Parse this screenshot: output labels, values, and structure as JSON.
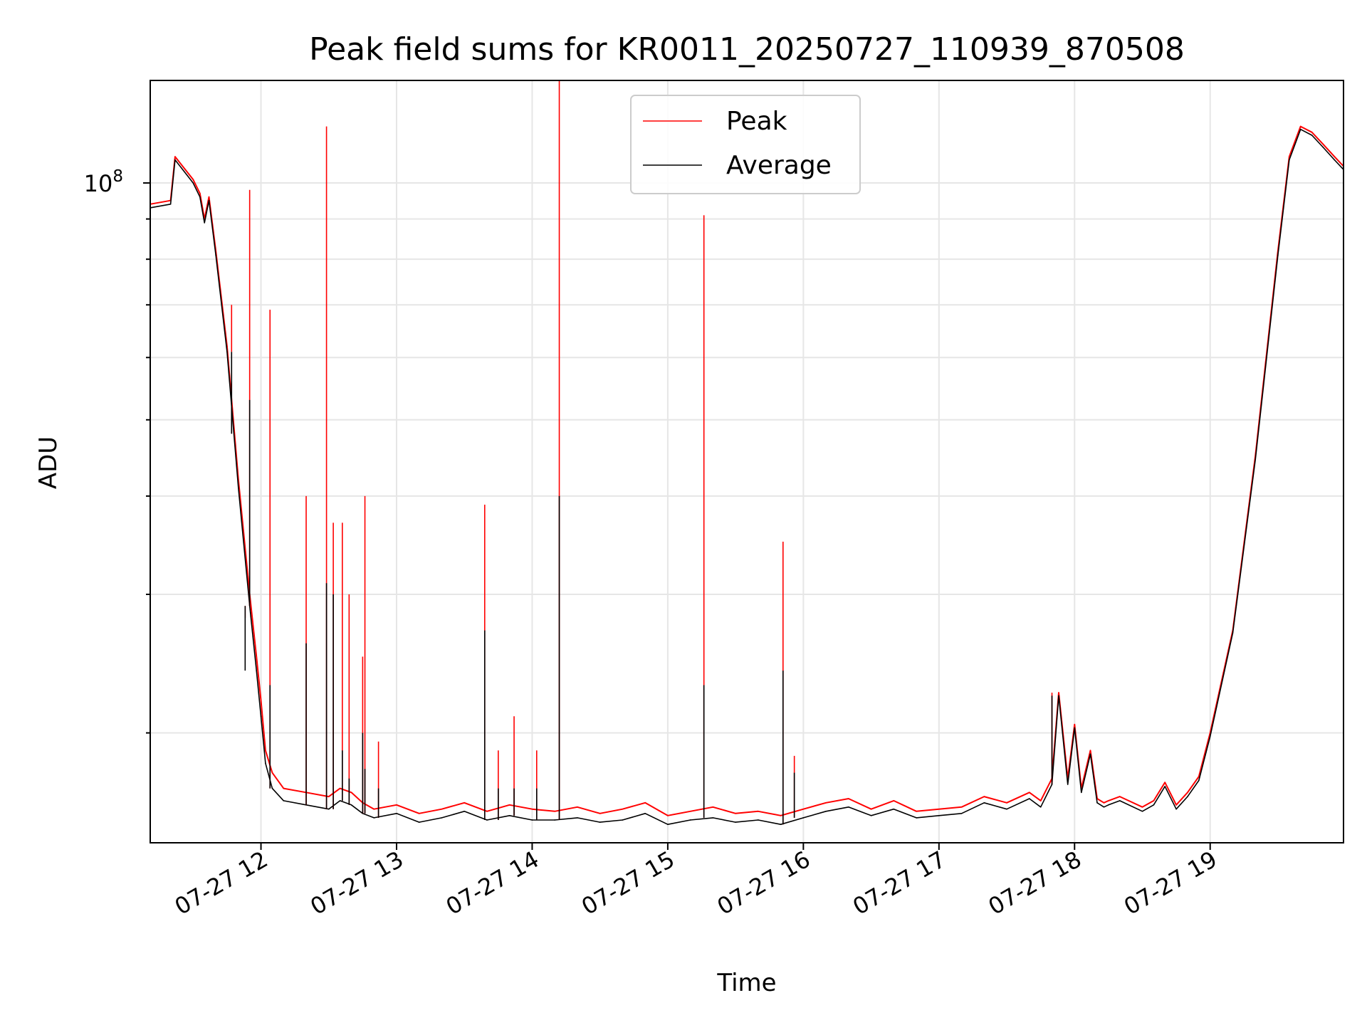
{
  "chart_data": {
    "type": "line",
    "title": "Peak field sums for KR0011_20250727_110939_870508",
    "xlabel": "Time",
    "ylabel": "ADU",
    "x_axis": {
      "kind": "datetime",
      "range": [
        "07-27 11:11",
        "07-27 19:59"
      ],
      "tick_labels": [
        "07-27 12",
        "07-27 13",
        "07-27 14",
        "07-27 15",
        "07-27 16",
        "07-27 17",
        "07-27 18",
        "07-27 19"
      ]
    },
    "y_axis": {
      "scale": "log",
      "range": [
        14500000,
        135000000
      ],
      "tick_labels": [
        "10^8"
      ]
    },
    "grid": true,
    "legend": {
      "position": "top-center",
      "entries": [
        "Peak",
        "Average"
      ]
    },
    "colors": {
      "Peak": "#ff0000",
      "Average": "#000000"
    },
    "series": [
      {
        "name": "Peak",
        "color": "#ff0000",
        "x": [
          "11:11",
          "11:20",
          "11:22",
          "11:30",
          "11:33",
          "11:35",
          "11:37",
          "11:40",
          "11:45",
          "11:50",
          "11:55",
          "11:58",
          "12:00",
          "12:02",
          "12:05",
          "12:10",
          "12:20",
          "12:30",
          "12:35",
          "12:40",
          "12:45",
          "12:50",
          "13:00",
          "13:10",
          "13:20",
          "13:30",
          "13:40",
          "13:50",
          "14:00",
          "14:10",
          "14:20",
          "14:30",
          "14:40",
          "14:50",
          "15:00",
          "15:10",
          "15:20",
          "15:30",
          "15:40",
          "15:50",
          "16:00",
          "16:10",
          "16:20",
          "16:30",
          "16:40",
          "16:50",
          "17:00",
          "17:10",
          "17:20",
          "17:30",
          "17:40",
          "17:45",
          "17:50",
          "17:53",
          "17:57",
          "18:00",
          "18:03",
          "18:07",
          "18:10",
          "18:13",
          "18:15",
          "18:20",
          "18:30",
          "18:35",
          "18:40",
          "18:45",
          "18:50",
          "18:55",
          "19:00",
          "19:10",
          "19:20",
          "19:30",
          "19:35",
          "19:40",
          "19:45",
          "19:50",
          "19:55",
          "19:59"
        ],
        "y": [
          94000000,
          95000000,
          108000000,
          101000000,
          97000000,
          90000000,
          96000000,
          82000000,
          62000000,
          42000000,
          30000000,
          25000000,
          22000000,
          19000000,
          17800000,
          17000000,
          16800000,
          16600000,
          17000000,
          16800000,
          16300000,
          16000000,
          16200000,
          15800000,
          16000000,
          16300000,
          15900000,
          16200000,
          16000000,
          15900000,
          16100000,
          15800000,
          16000000,
          16300000,
          15700000,
          15900000,
          16100000,
          15800000,
          15900000,
          15700000,
          16000000,
          16300000,
          16500000,
          16000000,
          16400000,
          15900000,
          16000000,
          16100000,
          16600000,
          16300000,
          16800000,
          16400000,
          17500000,
          22500000,
          17500000,
          20500000,
          17000000,
          19000000,
          16500000,
          16300000,
          16400000,
          16600000,
          16100000,
          16400000,
          17300000,
          16200000,
          16800000,
          17600000,
          20000000,
          27000000,
          45000000,
          82000000,
          108000000,
          118000000,
          116000000,
          112000000,
          108000000,
          105000000
        ]
      },
      {
        "name": "Average",
        "color": "#000000",
        "x": [
          "11:11",
          "11:20",
          "11:22",
          "11:30",
          "11:33",
          "11:35",
          "11:37",
          "11:40",
          "11:45",
          "11:50",
          "11:55",
          "11:58",
          "12:00",
          "12:02",
          "12:05",
          "12:10",
          "12:20",
          "12:30",
          "12:35",
          "12:40",
          "12:45",
          "12:50",
          "13:00",
          "13:10",
          "13:20",
          "13:30",
          "13:40",
          "13:50",
          "14:00",
          "14:10",
          "14:20",
          "14:30",
          "14:40",
          "14:50",
          "15:00",
          "15:10",
          "15:20",
          "15:30",
          "15:40",
          "15:50",
          "16:00",
          "16:10",
          "16:20",
          "16:30",
          "16:40",
          "16:50",
          "17:00",
          "17:10",
          "17:20",
          "17:30",
          "17:40",
          "17:45",
          "17:50",
          "17:53",
          "17:57",
          "18:00",
          "18:03",
          "18:07",
          "18:10",
          "18:13",
          "18:15",
          "18:20",
          "18:30",
          "18:35",
          "18:40",
          "18:45",
          "18:50",
          "18:55",
          "19:00",
          "19:10",
          "19:20",
          "19:30",
          "19:35",
          "19:40",
          "19:45",
          "19:50",
          "19:55",
          "19:59"
        ],
        "y": [
          93000000,
          94000000,
          107000000,
          100000000,
          96000000,
          89000000,
          95000000,
          81000000,
          61000000,
          41000000,
          29000000,
          24000000,
          21000000,
          18300000,
          17000000,
          16400000,
          16200000,
          16000000,
          16400000,
          16200000,
          15800000,
          15600000,
          15800000,
          15400000,
          15600000,
          15900000,
          15500000,
          15700000,
          15500000,
          15500000,
          15600000,
          15400000,
          15500000,
          15800000,
          15300000,
          15500000,
          15600000,
          15400000,
          15500000,
          15300000,
          15600000,
          15900000,
          16100000,
          15700000,
          16000000,
          15600000,
          15700000,
          15800000,
          16300000,
          16000000,
          16500000,
          16100000,
          17200000,
          22300000,
          17200000,
          20300000,
          16800000,
          18800000,
          16300000,
          16100000,
          16200000,
          16400000,
          15900000,
          16200000,
          17100000,
          16000000,
          16600000,
          17400000,
          19800000,
          26800000,
          44500000,
          81000000,
          107000000,
          117000000,
          115000000,
          111000000,
          107000000,
          104000000
        ]
      }
    ],
    "spikes": {
      "x": [
        "11:47",
        "11:53",
        "11:55",
        "12:04",
        "12:20",
        "12:29",
        "12:32",
        "12:36",
        "12:39",
        "12:45",
        "12:46",
        "12:52",
        "13:39",
        "13:45",
        "13:52",
        "14:02",
        "14:12",
        "15:16",
        "15:51",
        "15:56",
        "17:50"
      ],
      "peak_y": [
        70000000,
        28000000,
        98000000,
        69000000,
        40000000,
        118000000,
        37000000,
        37000000,
        30000000,
        25000000,
        40000000,
        19500000,
        39000000,
        19000000,
        21000000,
        19000000,
        135000000,
        91000000,
        35000000,
        18700000,
        22500000
      ],
      "average_y": [
        48000000,
        24000000,
        53000000,
        23000000,
        26000000,
        31000000,
        30000000,
        19000000,
        17500000,
        20000000,
        18000000,
        17000000,
        27000000,
        17000000,
        17000000,
        17000000,
        40000000,
        23000000,
        24000000,
        17800000,
        22300000
      ]
    }
  }
}
